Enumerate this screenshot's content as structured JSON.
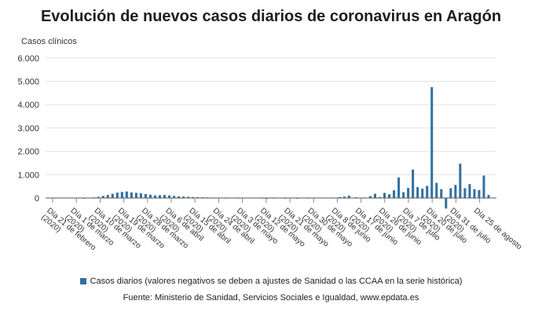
{
  "chart_data": {
    "type": "bar",
    "title": "Evolución de nuevos casos diarios de coronavirus en Aragón",
    "ylabel": "Casos clínicos",
    "xlabel": "",
    "ylim": [
      -500,
      6000
    ],
    "yticks": [
      0,
      1000,
      2000,
      3000,
      4000,
      5000,
      6000
    ],
    "ytick_labels": [
      "0",
      "1.000",
      "2.000",
      "3.000",
      "4.000",
      "5.000",
      "6.000"
    ],
    "grid": "horizontal",
    "legend_position": "bottom",
    "color": "#2f6f9f",
    "xtick_labels": [
      "Día 21 de febrero (2020)",
      "Día 1 de marzo (2020)",
      "Día 10 de marzo (2020)",
      "Día 19 de marzo (2020)",
      "Día 28 de marzo (2020)",
      "Día 6 de abril (2020)",
      "Día 15 de abril (2020)",
      "Día 24 de abril (2020)",
      "Día 3 de mayo (2020)",
      "Día 12 de mayo (2020)",
      "Día 21 de mayo (2020)",
      "Día 30 de mayo (2020)",
      "Día 8 de junio (2020)",
      "Día 17 de junio (2020)",
      "Día 26 de junio (2020)",
      "Día 7 de julio (2020)",
      "Día 20 de julio (2020)",
      "Día 31 de julio (2020)",
      "Día 25 de agosto"
    ],
    "series": [
      {
        "name": "Casos diarios (valores negativos se deben a ajustes de Sanidad o las CCAA en la serie histórica)",
        "x": [
          "2020-02-21",
          "2020-02-23",
          "2020-02-25",
          "2020-02-27",
          "2020-02-29",
          "2020-03-02",
          "2020-03-04",
          "2020-03-06",
          "2020-03-08",
          "2020-03-10",
          "2020-03-12",
          "2020-03-14",
          "2020-03-16",
          "2020-03-18",
          "2020-03-20",
          "2020-03-22",
          "2020-03-24",
          "2020-03-26",
          "2020-03-28",
          "2020-03-30",
          "2020-04-01",
          "2020-04-03",
          "2020-04-05",
          "2020-04-07",
          "2020-04-09",
          "2020-04-11",
          "2020-04-13",
          "2020-04-15",
          "2020-04-17",
          "2020-04-19",
          "2020-04-21",
          "2020-04-23",
          "2020-04-25",
          "2020-04-27",
          "2020-04-29",
          "2020-05-01",
          "2020-05-05",
          "2020-05-10",
          "2020-05-15",
          "2020-05-20",
          "2020-05-22",
          "2020-05-25",
          "2020-05-30",
          "2020-06-04",
          "2020-06-09",
          "2020-06-14",
          "2020-06-19",
          "2020-06-22",
          "2020-06-24",
          "2020-06-26",
          "2020-06-29",
          "2020-07-02",
          "2020-07-05",
          "2020-07-07",
          "2020-07-09",
          "2020-07-11",
          "2020-07-13",
          "2020-07-15",
          "2020-07-17",
          "2020-07-19",
          "2020-07-21",
          "2020-07-23",
          "2020-07-25",
          "2020-07-27",
          "2020-07-29",
          "2020-07-31",
          "2020-08-02",
          "2020-08-04",
          "2020-08-06",
          "2020-08-08",
          "2020-08-10",
          "2020-08-12",
          "2020-08-14",
          "2020-08-16",
          "2020-08-18",
          "2020-08-20",
          "2020-08-22",
          "2020-08-24"
        ],
        "values": [
          0,
          0,
          0,
          0,
          0,
          0,
          0,
          5,
          15,
          25,
          50,
          90,
          130,
          180,
          230,
          260,
          280,
          240,
          220,
          200,
          170,
          140,
          110,
          120,
          130,
          110,
          90,
          70,
          60,
          50,
          40,
          35,
          30,
          25,
          20,
          15,
          10,
          10,
          15,
          10,
          -40,
          10,
          5,
          5,
          10,
          15,
          20,
          40,
          60,
          100,
          30,
          20,
          80,
          180,
          40,
          220,
          160,
          330,
          880,
          250,
          430,
          1220,
          470,
          400,
          520,
          4750,
          650,
          380,
          -450,
          420,
          560,
          1470,
          420,
          600,
          380,
          340,
          960,
          130
        ]
      }
    ]
  },
  "legend": {
    "label": "Casos diarios (valores negativos se deben a ajustes de Sanidad o las CCAA en la serie histórica)"
  },
  "source": "Fuente: Ministerio de Sanidad, Servicios Sociales e Igualdad, www.epdata.es"
}
